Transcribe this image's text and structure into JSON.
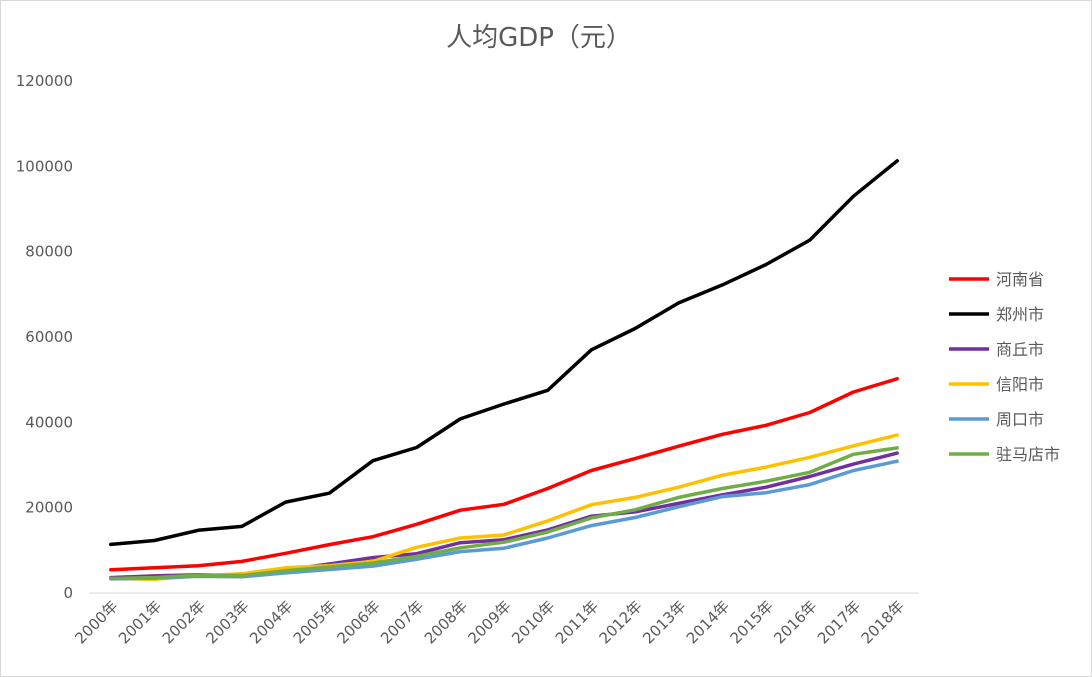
{
  "chart_data": {
    "type": "line",
    "title": "人均GDP（元）",
    "xlabel": "",
    "ylabel": "",
    "ylim": [
      0,
      120000
    ],
    "yticks": [
      0,
      20000,
      40000,
      60000,
      80000,
      100000,
      120000
    ],
    "grid": false,
    "legend_position": "right",
    "categories": [
      "2000年",
      "2001年",
      "2002年",
      "2003年",
      "2004年",
      "2005年",
      "2006年",
      "2007年",
      "2008年",
      "2009年",
      "2010年",
      "2011年",
      "2012年",
      "2013年",
      "2014年",
      "2015年",
      "2016年",
      "2017年",
      "2018年"
    ],
    "series": [
      {
        "name": "河南省",
        "color": "#ff0000",
        "values": [
          5450,
          5900,
          6400,
          7400,
          9300,
          11350,
          13200,
          16100,
          19400,
          20800,
          24500,
          28700,
          31500,
          34400,
          37200,
          39300,
          42300,
          47100,
          50200
        ]
      },
      {
        "name": "郑州市",
        "color": "#000000",
        "values": [
          11400,
          12300,
          14700,
          15600,
          21300,
          23400,
          31000,
          34100,
          40800,
          44300,
          47500,
          57000,
          62000,
          68000,
          72200,
          77000,
          82700,
          93000,
          101300
        ]
      },
      {
        "name": "商丘市",
        "color": "#7030a0",
        "values": [
          3600,
          4000,
          4300,
          4000,
          5400,
          6800,
          8300,
          9200,
          11800,
          12500,
          14800,
          18000,
          19000,
          21000,
          23000,
          24800,
          27300,
          30200,
          32800
        ]
      },
      {
        "name": "信阳市",
        "color": "#ffc000",
        "values": [
          3400,
          3200,
          4000,
          4500,
          5900,
          6400,
          7400,
          10700,
          12900,
          13600,
          16900,
          20700,
          22400,
          24800,
          27600,
          29500,
          31800,
          34500,
          37000
        ]
      },
      {
        "name": "周口市",
        "color": "#5b9bd5",
        "values": [
          3300,
          3500,
          3900,
          3800,
          4700,
          5500,
          6300,
          7900,
          9700,
          10500,
          12900,
          15800,
          17700,
          20200,
          22600,
          23500,
          25400,
          28700,
          30900
        ]
      },
      {
        "name": "驻马店市",
        "color": "#70ad47",
        "values": [
          3400,
          3600,
          4200,
          4100,
          5200,
          6100,
          7000,
          8600,
          10600,
          11900,
          14300,
          17600,
          19500,
          22400,
          24500,
          26200,
          28300,
          32500,
          34000
        ]
      }
    ]
  }
}
